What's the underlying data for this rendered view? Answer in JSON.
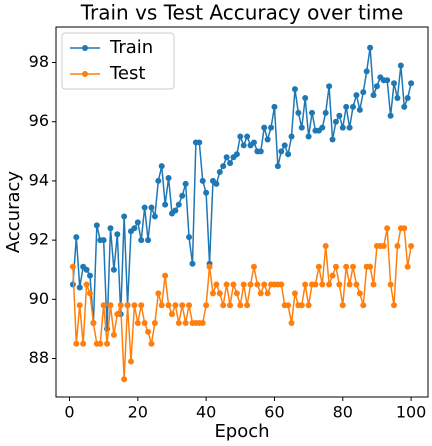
{
  "chart_data": {
    "type": "line",
    "title": "Train vs Test Accuracy over time",
    "xlabel": "Epoch",
    "ylabel": "Accuracy",
    "x": [
      1,
      2,
      3,
      4,
      5,
      6,
      7,
      8,
      9,
      10,
      11,
      12,
      13,
      14,
      15,
      16,
      17,
      18,
      19,
      20,
      21,
      22,
      23,
      24,
      25,
      26,
      27,
      28,
      29,
      30,
      31,
      32,
      33,
      34,
      35,
      36,
      37,
      38,
      39,
      40,
      41,
      42,
      43,
      44,
      45,
      46,
      47,
      48,
      49,
      50,
      51,
      52,
      53,
      54,
      55,
      56,
      57,
      58,
      59,
      60,
      61,
      62,
      63,
      64,
      65,
      66,
      67,
      68,
      69,
      70,
      71,
      72,
      73,
      74,
      75,
      76,
      77,
      78,
      79,
      80,
      81,
      82,
      83,
      84,
      85,
      86,
      87,
      88,
      89,
      90,
      91,
      92,
      93,
      94,
      95,
      96,
      97,
      98,
      99,
      100
    ],
    "series": [
      {
        "name": "Train",
        "color": "#1f77b4",
        "values": [
          90.5,
          92.1,
          90.4,
          91.1,
          91.0,
          90.8,
          89.2,
          92.5,
          92.0,
          92.0,
          89.0,
          92.4,
          91.0,
          92.2,
          89.5,
          92.8,
          89.8,
          92.3,
          92.4,
          92.6,
          92.0,
          93.1,
          92.0,
          93.1,
          92.8,
          94.0,
          94.5,
          93.2,
          94.1,
          92.9,
          93.0,
          93.2,
          93.5,
          93.9,
          92.1,
          91.2,
          95.3,
          95.3,
          94.0,
          93.6,
          91.2,
          94.0,
          93.9,
          94.3,
          94.5,
          94.8,
          94.6,
          94.8,
          94.9,
          95.5,
          95.2,
          95.5,
          95.2,
          95.3,
          95.0,
          95.0,
          95.8,
          95.4,
          95.8,
          96.5,
          94.5,
          95.0,
          95.2,
          94.9,
          95.5,
          97.1,
          96.3,
          95.8,
          96.8,
          95.5,
          96.3,
          95.7,
          95.7,
          95.8,
          96.3,
          97.2,
          95.4,
          96.0,
          96.2,
          95.8,
          96.5,
          95.8,
          96.5,
          96.9,
          96.4,
          97.0,
          97.7,
          98.5,
          96.9,
          97.2,
          97.5,
          97.4,
          97.4,
          96.2,
          97.3,
          96.8,
          97.9,
          96.5,
          96.8,
          97.3
        ]
      },
      {
        "name": "Test",
        "color": "#ff7f0e",
        "values": [
          91.1,
          88.5,
          89.8,
          88.5,
          90.5,
          90.2,
          89.2,
          88.5,
          88.5,
          89.8,
          88.5,
          89.8,
          88.8,
          89.5,
          89.8,
          87.3,
          89.8,
          87.9,
          89.8,
          89.2,
          89.8,
          89.2,
          88.9,
          88.5,
          89.2,
          90.2,
          89.8,
          90.8,
          89.8,
          89.5,
          89.8,
          89.2,
          89.8,
          89.2,
          89.8,
          89.2,
          89.2,
          89.2,
          89.2,
          89.8,
          91.1,
          90.2,
          90.5,
          90.2,
          89.8,
          90.5,
          89.8,
          90.5,
          90.2,
          89.8,
          90.5,
          89.8,
          90.5,
          91.1,
          90.5,
          90.2,
          90.5,
          90.2,
          90.5,
          90.5,
          90.5,
          90.5,
          89.8,
          89.8,
          89.2,
          90.2,
          89.8,
          89.8,
          90.5,
          89.8,
          90.5,
          90.5,
          91.1,
          90.5,
          91.8,
          90.5,
          90.8,
          91.1,
          90.5,
          89.8,
          91.1,
          90.5,
          91.1,
          90.5,
          90.2,
          89.8,
          91.1,
          91.1,
          90.5,
          91.8,
          91.8,
          91.8,
          92.4,
          90.5,
          89.8,
          91.8,
          92.4,
          92.4,
          91.1,
          91.8
        ]
      }
    ],
    "xlim": [
      -3.95,
      104.95
    ],
    "ylim": [
      86.7,
      99.2
    ],
    "xticks": [
      0,
      20,
      40,
      60,
      80,
      100
    ],
    "yticks": [
      88,
      90,
      92,
      94,
      96,
      98
    ],
    "legend": "upper left",
    "grid": false
  }
}
